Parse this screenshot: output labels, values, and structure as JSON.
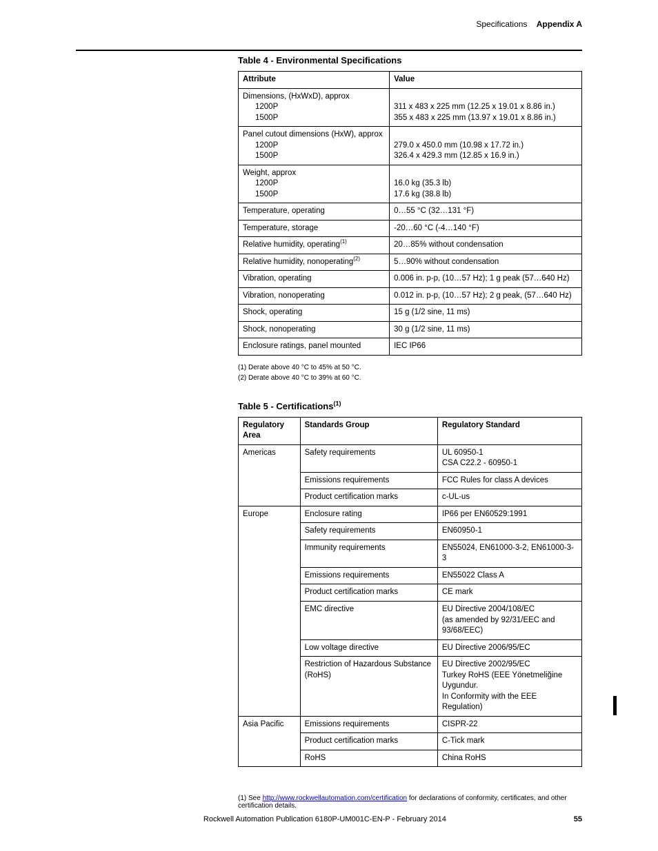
{
  "header": {
    "section": "Specifications",
    "appendix": "Appendix A"
  },
  "table4": {
    "title": "Table 4 - Environmental Specifications",
    "columns": [
      "Attribute",
      "Value"
    ],
    "rows": [
      {
        "attr_main": "Dimensions, (HxWxD), approx",
        "attr_sub": [
          "1200P",
          "1500P"
        ],
        "val": [
          "",
          "311 x 483 x 225 mm (12.25 x 19.01 x 8.86 in.)",
          "355 x 483 x 225 mm (13.97 x 19.01 x 8.86 in.)"
        ]
      },
      {
        "attr_main": "Panel cutout dimensions (HxW), approx",
        "attr_sub": [
          "1200P",
          "1500P"
        ],
        "val": [
          "",
          "279.0 x 450.0 mm (10.98 x 17.72 in.)",
          "326.4 x 429.3 mm (12.85 x 16.9 in.)"
        ]
      },
      {
        "attr_main": "Weight, approx",
        "attr_sub": [
          "1200P",
          "1500P"
        ],
        "val": [
          "",
          "16.0 kg (35.3 lb)",
          "17.6 kg (38.8 lb)"
        ]
      },
      {
        "attr": "Temperature, operating",
        "val": "0…55 °C (32…131 °F)"
      },
      {
        "attr": "Temperature, storage",
        "val": "-20…60 °C (-4…140 °F)"
      },
      {
        "attr": "Relative humidity, operating",
        "sup": "(1)",
        "val": "20…85% without condensation"
      },
      {
        "attr": "Relative humidity, nonoperating",
        "sup": "(2)",
        "val": "5…90% without condensation"
      },
      {
        "attr": "Vibration, operating",
        "val": "0.006 in. p-p, (10…57 Hz); 1 g peak (57…640 Hz)"
      },
      {
        "attr": "Vibration, nonoperating",
        "val": "0.012 in. p-p, (10…57 Hz); 2 g peak, (57…640 Hz)"
      },
      {
        "attr": "Shock, operating",
        "val": "15 g (1/2 sine, 11 ms)"
      },
      {
        "attr": "Shock, nonoperating",
        "val": "30 g (1/2 sine, 11 ms)"
      },
      {
        "attr": "Enclosure ratings, panel mounted",
        "val": "IEC IP66"
      }
    ],
    "footnotes": [
      "(1)   Derate above 40 °C to 45% at 50 °C.",
      "(2)   Derate above 40 °C to 39% at 60 °C."
    ]
  },
  "table5": {
    "title_main": "Table 5 - Certifications",
    "title_sup": "(1)",
    "columns": [
      "Regulatory Area",
      "Standards Group",
      "Regulatory Standard"
    ],
    "groups": [
      {
        "area": "Americas",
        "rows": [
          {
            "group": "Safety requirements",
            "std": "UL 60950-1\nCSA C22.2 - 60950-1"
          },
          {
            "group": "Emissions requirements",
            "std": "FCC Rules for class A devices"
          },
          {
            "group": "Product certification marks",
            "std": "c-UL-us"
          }
        ]
      },
      {
        "area": "Europe",
        "rows": [
          {
            "group": "Enclosure rating",
            "std": "IP66 per EN60529:1991"
          },
          {
            "group": "Safety requirements",
            "std": "EN60950-1"
          },
          {
            "group": "Immunity requirements",
            "std": "EN55024, EN61000-3-2, EN61000-3-3"
          },
          {
            "group": "Emissions requirements",
            "std": "EN55022 Class A"
          },
          {
            "group": "Product certification marks",
            "std": "CE mark"
          },
          {
            "group": "EMC directive",
            "std": "EU Directive 2004/108/EC\n(as amended by 92/31/EEC and 93/68/EEC)"
          },
          {
            "group": "Low voltage directive",
            "std": "EU Directive 2006/95/EC"
          },
          {
            "group": "Restriction of Hazardous Substance (RoHS)",
            "std": "EU Directive 2002/95/EC\nTurkey RoHS (EEE Yönetmeliğine Uygundur.\nIn Conformity with the EEE Regulation)"
          }
        ]
      },
      {
        "area": "Asia Pacific",
        "rows": [
          {
            "group": "Emissions requirements",
            "std": "CISPR-22"
          },
          {
            "group": "Product certification marks",
            "std": "C-Tick mark"
          },
          {
            "group": "RoHS",
            "std": "China RoHS"
          }
        ]
      }
    ],
    "footnote_prefix": "(1)   See ",
    "footnote_link": "http://www.rockwellautomation.com/certification",
    "footnote_suffix": " for declarations of conformity, certificates, and other certification details."
  },
  "footer": {
    "pub": "Rockwell Automation Publication 6180P-UM001C-EN-P - February 2014",
    "page": "55"
  }
}
